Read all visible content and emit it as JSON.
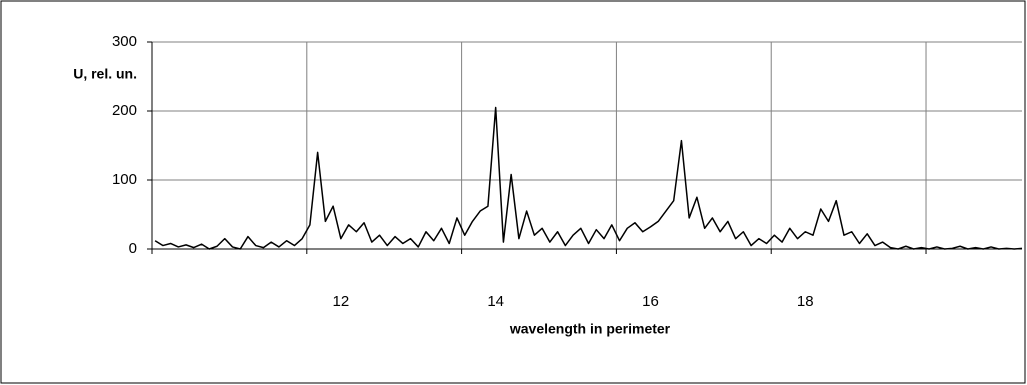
{
  "chart_data": {
    "type": "line",
    "y_label": "U, rel. un.",
    "x_label": "wavelength  in perimeter",
    "color": "#000000",
    "xlim": [
      9.56,
      20.8
    ],
    "xticks": [
      12,
      14,
      16,
      18
    ],
    "xgrid": [
      9.56,
      11.56,
      13.56,
      15.56,
      17.56,
      19.56
    ],
    "ylim": [
      0,
      300
    ],
    "yticks": [
      0,
      100,
      200,
      300
    ],
    "grid": true,
    "x": [
      9.6,
      9.7,
      9.8,
      9.9,
      10.0,
      10.1,
      10.2,
      10.3,
      10.4,
      10.5,
      10.6,
      10.7,
      10.8,
      10.9,
      11.0,
      11.1,
      11.2,
      11.3,
      11.4,
      11.5,
      11.6,
      11.7,
      11.8,
      11.9,
      12.0,
      12.1,
      12.2,
      12.3,
      12.4,
      12.5,
      12.6,
      12.7,
      12.8,
      12.9,
      13.0,
      13.1,
      13.2,
      13.3,
      13.4,
      13.5,
      13.6,
      13.7,
      13.8,
      13.9,
      14.0,
      14.1,
      14.2,
      14.3,
      14.4,
      14.5,
      14.6,
      14.7,
      14.8,
      14.9,
      15.0,
      15.1,
      15.2,
      15.3,
      15.4,
      15.5,
      15.6,
      15.7,
      15.8,
      15.9,
      16.0,
      16.1,
      16.2,
      16.3,
      16.4,
      16.5,
      16.6,
      16.7,
      16.8,
      16.9,
      17.0,
      17.1,
      17.2,
      17.3,
      17.4,
      17.5,
      17.6,
      17.7,
      17.8,
      17.9,
      18.0,
      18.1,
      18.2,
      18.3,
      18.4,
      18.5,
      18.6,
      18.7,
      18.8,
      18.9,
      19.0,
      19.1,
      19.2,
      19.3,
      19.4,
      19.5,
      19.6,
      19.7,
      19.8,
      19.9,
      20.0,
      20.1,
      20.2,
      20.3,
      20.4,
      20.5,
      20.6,
      20.7,
      20.8
    ],
    "values": [
      12,
      5,
      8,
      3,
      6,
      2,
      7,
      0,
      4,
      15,
      3,
      0,
      18,
      5,
      2,
      10,
      3,
      12,
      5,
      15,
      35,
      140,
      40,
      62,
      15,
      35,
      25,
      38,
      10,
      20,
      5,
      18,
      8,
      15,
      3,
      25,
      12,
      30,
      8,
      45,
      20,
      40,
      55,
      62,
      205,
      10,
      108,
      15,
      55,
      20,
      30,
      10,
      25,
      5,
      20,
      30,
      8,
      28,
      15,
      35,
      12,
      30,
      38,
      25,
      32,
      40,
      55,
      70,
      157,
      45,
      75,
      30,
      45,
      25,
      40,
      15,
      25,
      5,
      15,
      8,
      20,
      10,
      30,
      15,
      25,
      20,
      58,
      40,
      70,
      20,
      25,
      8,
      22,
      5,
      10,
      2,
      0,
      4,
      0,
      2,
      0,
      3,
      0,
      1,
      4,
      0,
      2,
      0,
      3,
      0,
      1,
      0,
      1
    ]
  }
}
